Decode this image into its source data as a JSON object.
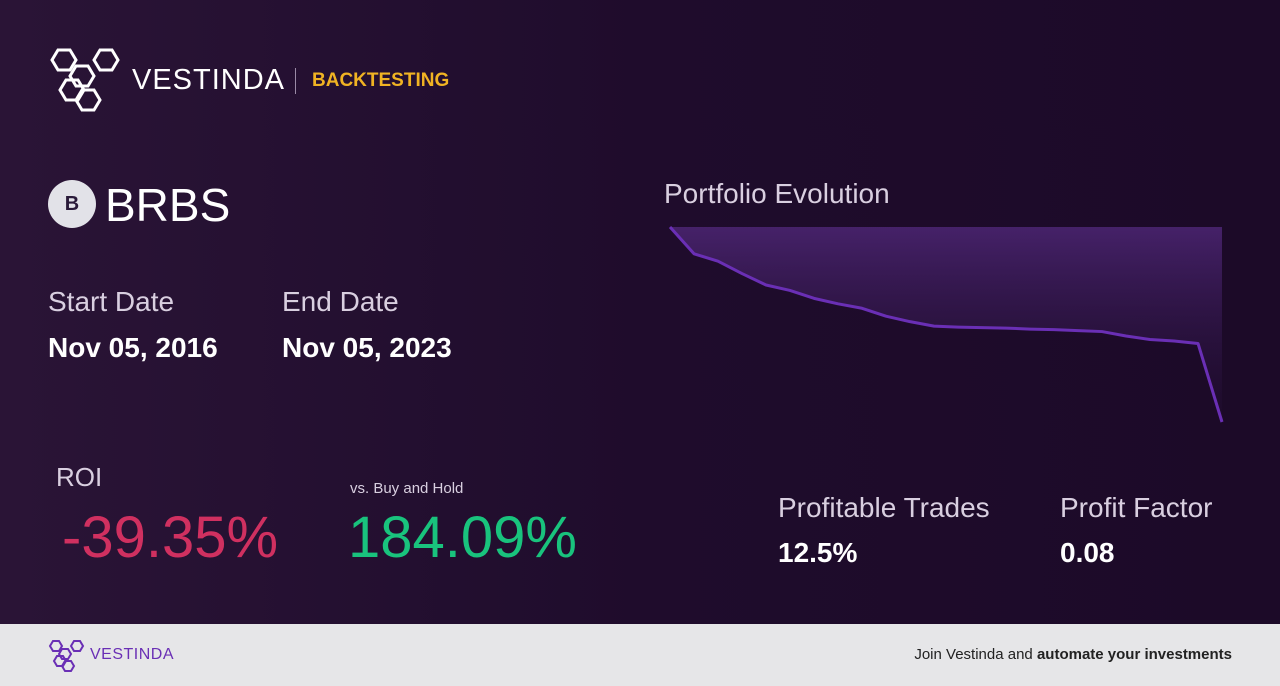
{
  "header": {
    "brand": "VESTINDA",
    "section": "BACKTESTING"
  },
  "ticker": {
    "initial": "B",
    "symbol": "BRBS"
  },
  "dates": {
    "start_label": "Start Date",
    "start_value": "Nov 05, 2016",
    "end_label": "End Date",
    "end_value": "Nov 05, 2023"
  },
  "roi": {
    "label": "ROI",
    "value": "-39.35%"
  },
  "benchmark": {
    "label": "vs. Buy and Hold",
    "value": "184.09%"
  },
  "chart_data": {
    "type": "line",
    "title": "Portfolio Evolution",
    "color": "#6a2fb5",
    "values": [
      100,
      94.6,
      93.1,
      90.6,
      88.3,
      87.2,
      85.6,
      84.5,
      83.6,
      82.0,
      80.9,
      80.0,
      79.8,
      79.7,
      79.6,
      79.4,
      79.3,
      79.1,
      78.9,
      78.0,
      77.3,
      77.0,
      76.5,
      60.65
    ]
  },
  "stats": {
    "trades_label": "Profitable Trades",
    "trades_value": "12.5%",
    "factor_label": "Profit Factor",
    "factor_value": "0.08"
  },
  "footer": {
    "brand": "VESTINDA",
    "text": "Join Vestinda and",
    "cta": "automate your investments"
  }
}
